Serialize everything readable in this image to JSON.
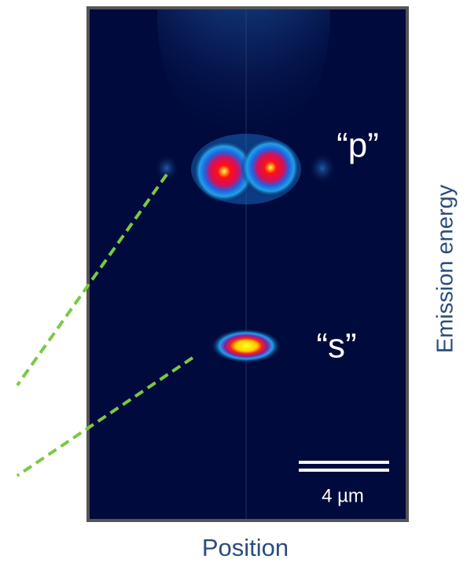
{
  "labels": {
    "p_state": "“p”",
    "s_state": "“s”",
    "scale_bar": "4 µm",
    "y_axis": "Emission energy",
    "x_axis": "Position"
  }
}
